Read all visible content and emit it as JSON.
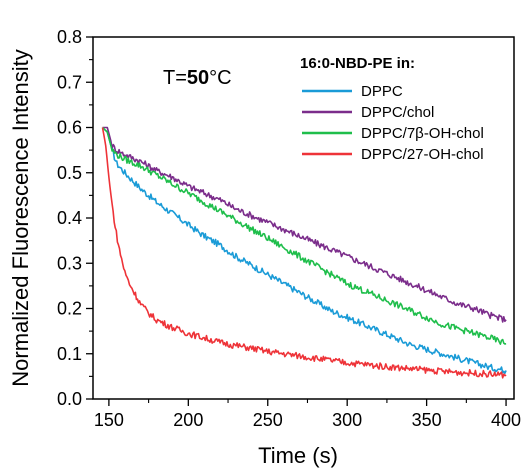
{
  "chart_data": {
    "type": "line",
    "title": "",
    "xlabel": "Time (s)",
    "ylabel": "Normalized Fluorescence Intensity",
    "xlim": [
      140,
      405
    ],
    "ylim": [
      0.0,
      0.8
    ],
    "xticks": [
      150,
      200,
      250,
      300,
      350,
      400
    ],
    "yticks": [
      0.0,
      0.1,
      0.2,
      0.3,
      0.4,
      0.5,
      0.6,
      0.7,
      0.8
    ],
    "grid": false,
    "legend": {
      "title": "16:0-NBD-PE in:",
      "placement": "top-right"
    },
    "annotation": {
      "prefix": "T=",
      "value": "50",
      "suffix": "°C"
    },
    "series": [
      {
        "name": "DPPC",
        "color": "#1a9bd7",
        "x": [
          146,
          149,
          152,
          155,
          160,
          170,
          180,
          190,
          200,
          210,
          220,
          230,
          240,
          250,
          260,
          270,
          280,
          290,
          300,
          310,
          320,
          330,
          340,
          350,
          360,
          370,
          380,
          390,
          400
        ],
        "y": [
          0.6,
          0.59,
          0.55,
          0.52,
          0.5,
          0.465,
          0.435,
          0.41,
          0.385,
          0.36,
          0.34,
          0.315,
          0.295,
          0.275,
          0.255,
          0.235,
          0.215,
          0.195,
          0.18,
          0.165,
          0.15,
          0.135,
          0.12,
          0.11,
          0.1,
          0.09,
          0.08,
          0.07,
          0.063
        ]
      },
      {
        "name": "DPPC/chol",
        "color": "#7b2d8b",
        "x": [
          146,
          149,
          152,
          155,
          160,
          170,
          180,
          190,
          200,
          210,
          220,
          230,
          240,
          250,
          260,
          270,
          280,
          290,
          300,
          310,
          320,
          330,
          340,
          350,
          360,
          370,
          380,
          390,
          400
        ],
        "y": [
          0.6,
          0.6,
          0.56,
          0.55,
          0.54,
          0.525,
          0.505,
          0.49,
          0.47,
          0.455,
          0.44,
          0.42,
          0.405,
          0.39,
          0.375,
          0.36,
          0.345,
          0.33,
          0.315,
          0.3,
          0.285,
          0.27,
          0.255,
          0.24,
          0.225,
          0.21,
          0.2,
          0.185,
          0.175
        ]
      },
      {
        "name": "DPPC/7β-OH-chol",
        "color": "#1fbe4b",
        "x": [
          146,
          149,
          152,
          155,
          160,
          170,
          180,
          190,
          200,
          210,
          220,
          230,
          240,
          250,
          260,
          270,
          280,
          290,
          300,
          310,
          320,
          330,
          340,
          350,
          360,
          370,
          380,
          390,
          400
        ],
        "y": [
          0.6,
          0.59,
          0.55,
          0.54,
          0.53,
          0.515,
          0.495,
          0.475,
          0.455,
          0.435,
          0.415,
          0.395,
          0.375,
          0.355,
          0.335,
          0.315,
          0.295,
          0.275,
          0.255,
          0.24,
          0.225,
          0.21,
          0.195,
          0.18,
          0.165,
          0.155,
          0.145,
          0.135,
          0.122
        ]
      },
      {
        "name": "DPPC/27-OH-chol",
        "color": "#ee3338",
        "x": [
          146,
          148,
          150,
          152,
          154,
          156,
          158,
          160,
          163,
          166,
          170,
          175,
          180,
          190,
          200,
          210,
          220,
          230,
          240,
          250,
          260,
          270,
          280,
          290,
          300,
          310,
          320,
          330,
          340,
          350,
          360,
          370,
          380,
          390,
          400
        ],
        "y": [
          0.6,
          0.56,
          0.49,
          0.43,
          0.38,
          0.34,
          0.31,
          0.28,
          0.255,
          0.235,
          0.21,
          0.19,
          0.175,
          0.158,
          0.145,
          0.135,
          0.125,
          0.118,
          0.112,
          0.105,
          0.1,
          0.095,
          0.09,
          0.085,
          0.08,
          0.077,
          0.073,
          0.07,
          0.067,
          0.064,
          0.061,
          0.059,
          0.057,
          0.055,
          0.053
        ]
      }
    ]
  }
}
